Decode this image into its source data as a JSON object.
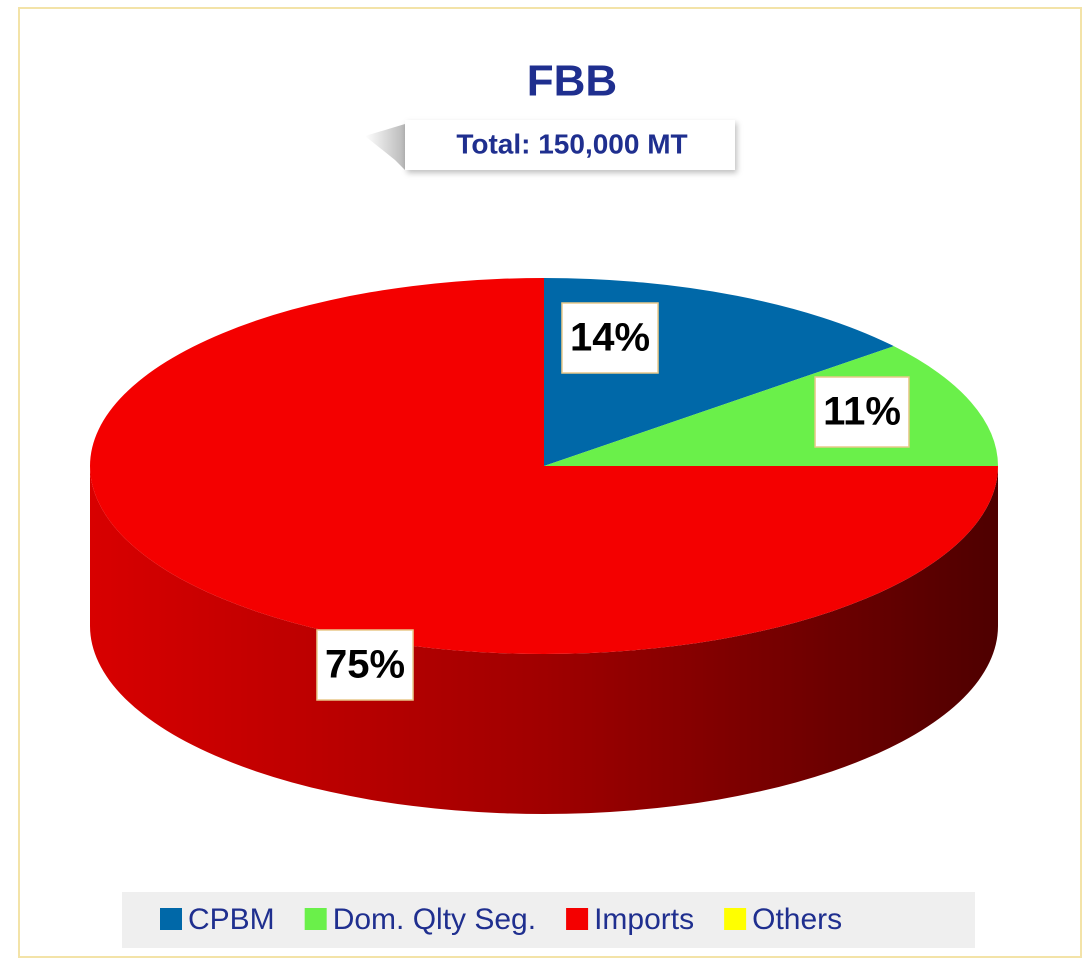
{
  "chart_data": {
    "type": "pie",
    "title": "FBB",
    "subtitle": "Total: 150,000 MT",
    "categories": [
      "CPBM",
      "Dom. Qlty Seg.",
      "Imports",
      "Others"
    ],
    "values": [
      14,
      11,
      75,
      0
    ],
    "value_labels": [
      "14%",
      "11%",
      "75%",
      null
    ],
    "colors": [
      "#0068a8",
      "#6af04a",
      "#f40000",
      "#ffff00"
    ],
    "legend": "bottom"
  }
}
